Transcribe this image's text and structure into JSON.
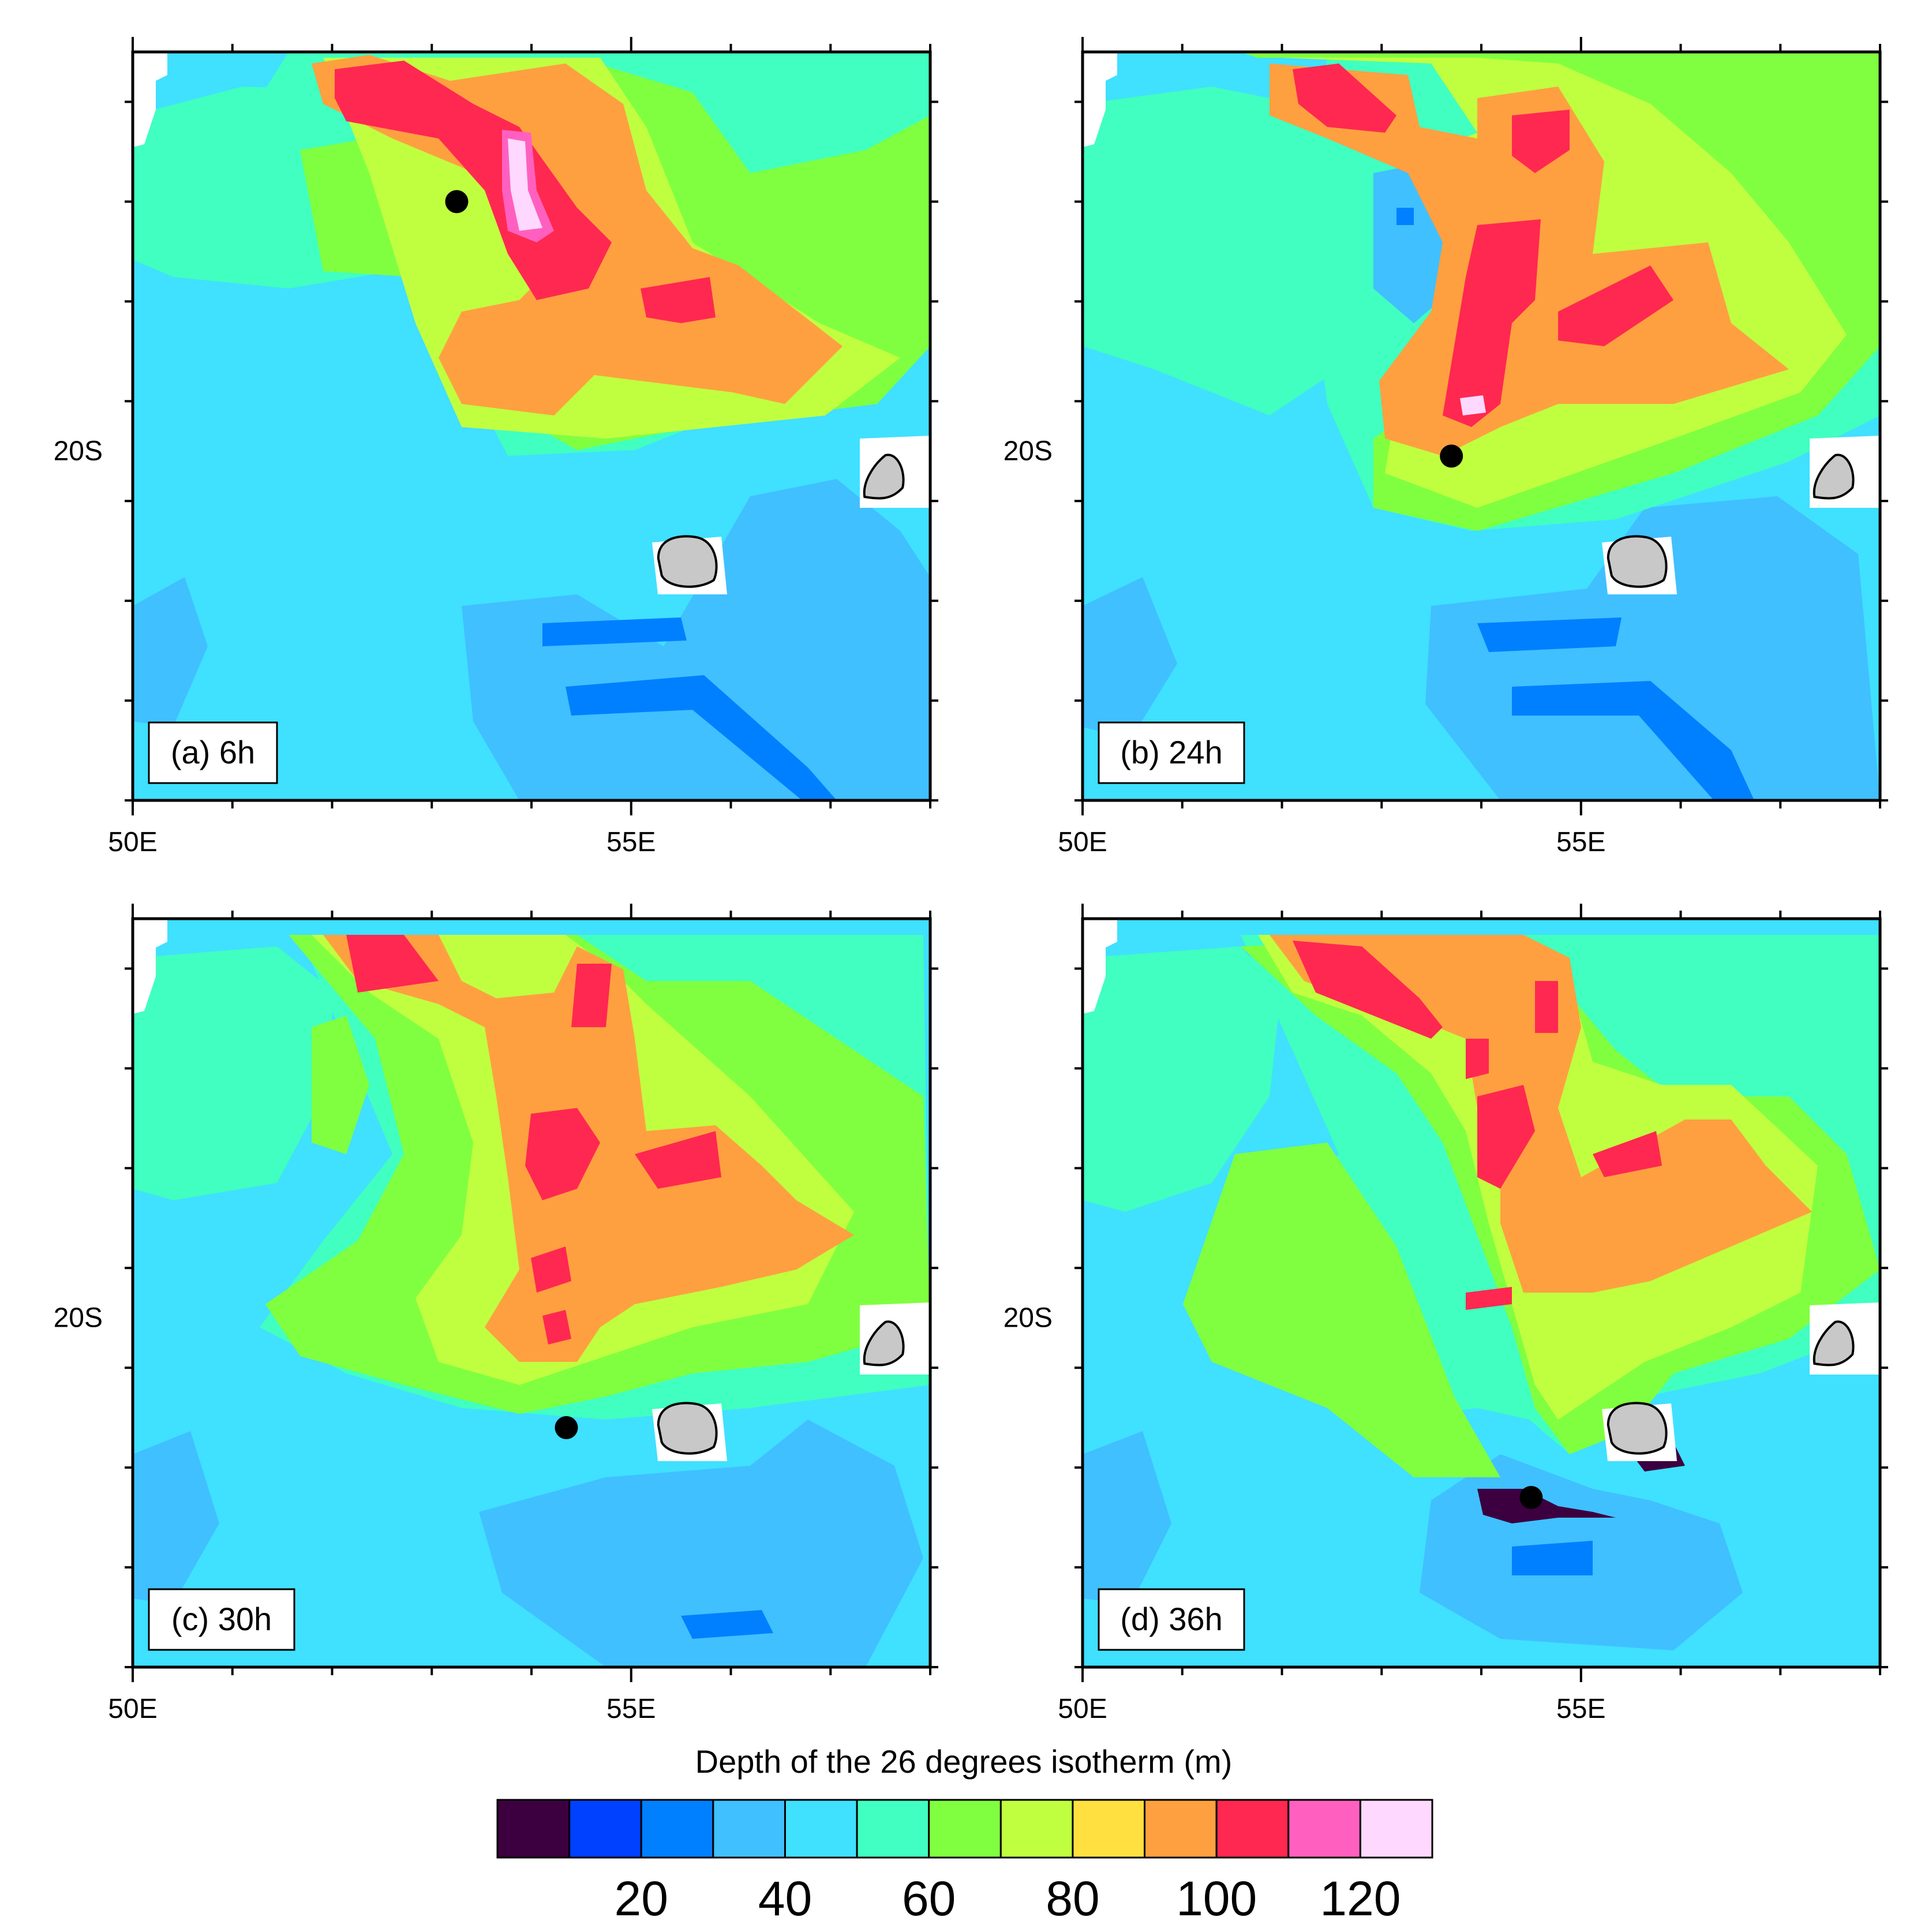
{
  "panels": [
    {
      "label": "(a) 6h",
      "storm_lon": 53.25,
      "storm_lat": -17.5
    },
    {
      "label": "(b) 24h",
      "storm_lon": 53.7,
      "storm_lat": -20.05
    },
    {
      "label": "(c) 30h",
      "storm_lon": 54.35,
      "storm_lat": -21.1
    },
    {
      "label": "(d) 36h",
      "storm_lon": 54.5,
      "storm_lat": -21.8
    }
  ],
  "axes": {
    "x_range": [
      50,
      58
    ],
    "y_range": [
      -23.5,
      -16
    ],
    "x_ticks": [
      {
        "value": 50,
        "label": "50E"
      },
      {
        "value": 55,
        "label": "55E"
      }
    ],
    "y_ticks": [
      {
        "value": -20,
        "label": "20S"
      }
    ]
  },
  "islands": [
    {
      "name": "",
      "lon": 55.55,
      "lat": -21.12
    },
    {
      "name": "",
      "lon": 57.55,
      "lat": -20.25
    }
  ],
  "colorbar": {
    "title": "Depth of the 26 degrees isotherm (m)",
    "tick_labels": [
      "20",
      "40",
      "60",
      "80",
      "100",
      "120"
    ],
    "bins": [
      "<10",
      "10-20",
      "20-30",
      "30-40",
      "40-50",
      "50-60",
      "60-70",
      "70-80",
      "80-90",
      "90-100",
      "100-110",
      "110-120",
      ">120"
    ],
    "colors": [
      "#3c0040",
      "#0040ff",
      "#0080ff",
      "#40c0ff",
      "#40e0ff",
      "#40ffc0",
      "#80ff40",
      "#c0ff40",
      "#ffe040",
      "#ffa040",
      "#ff2850",
      "#ff60c0",
      "#ffd8ff"
    ]
  },
  "colors": {
    "background_field": "#40e0ff",
    "land": "#c8c8c8",
    "storm_marker": "#000000"
  }
}
